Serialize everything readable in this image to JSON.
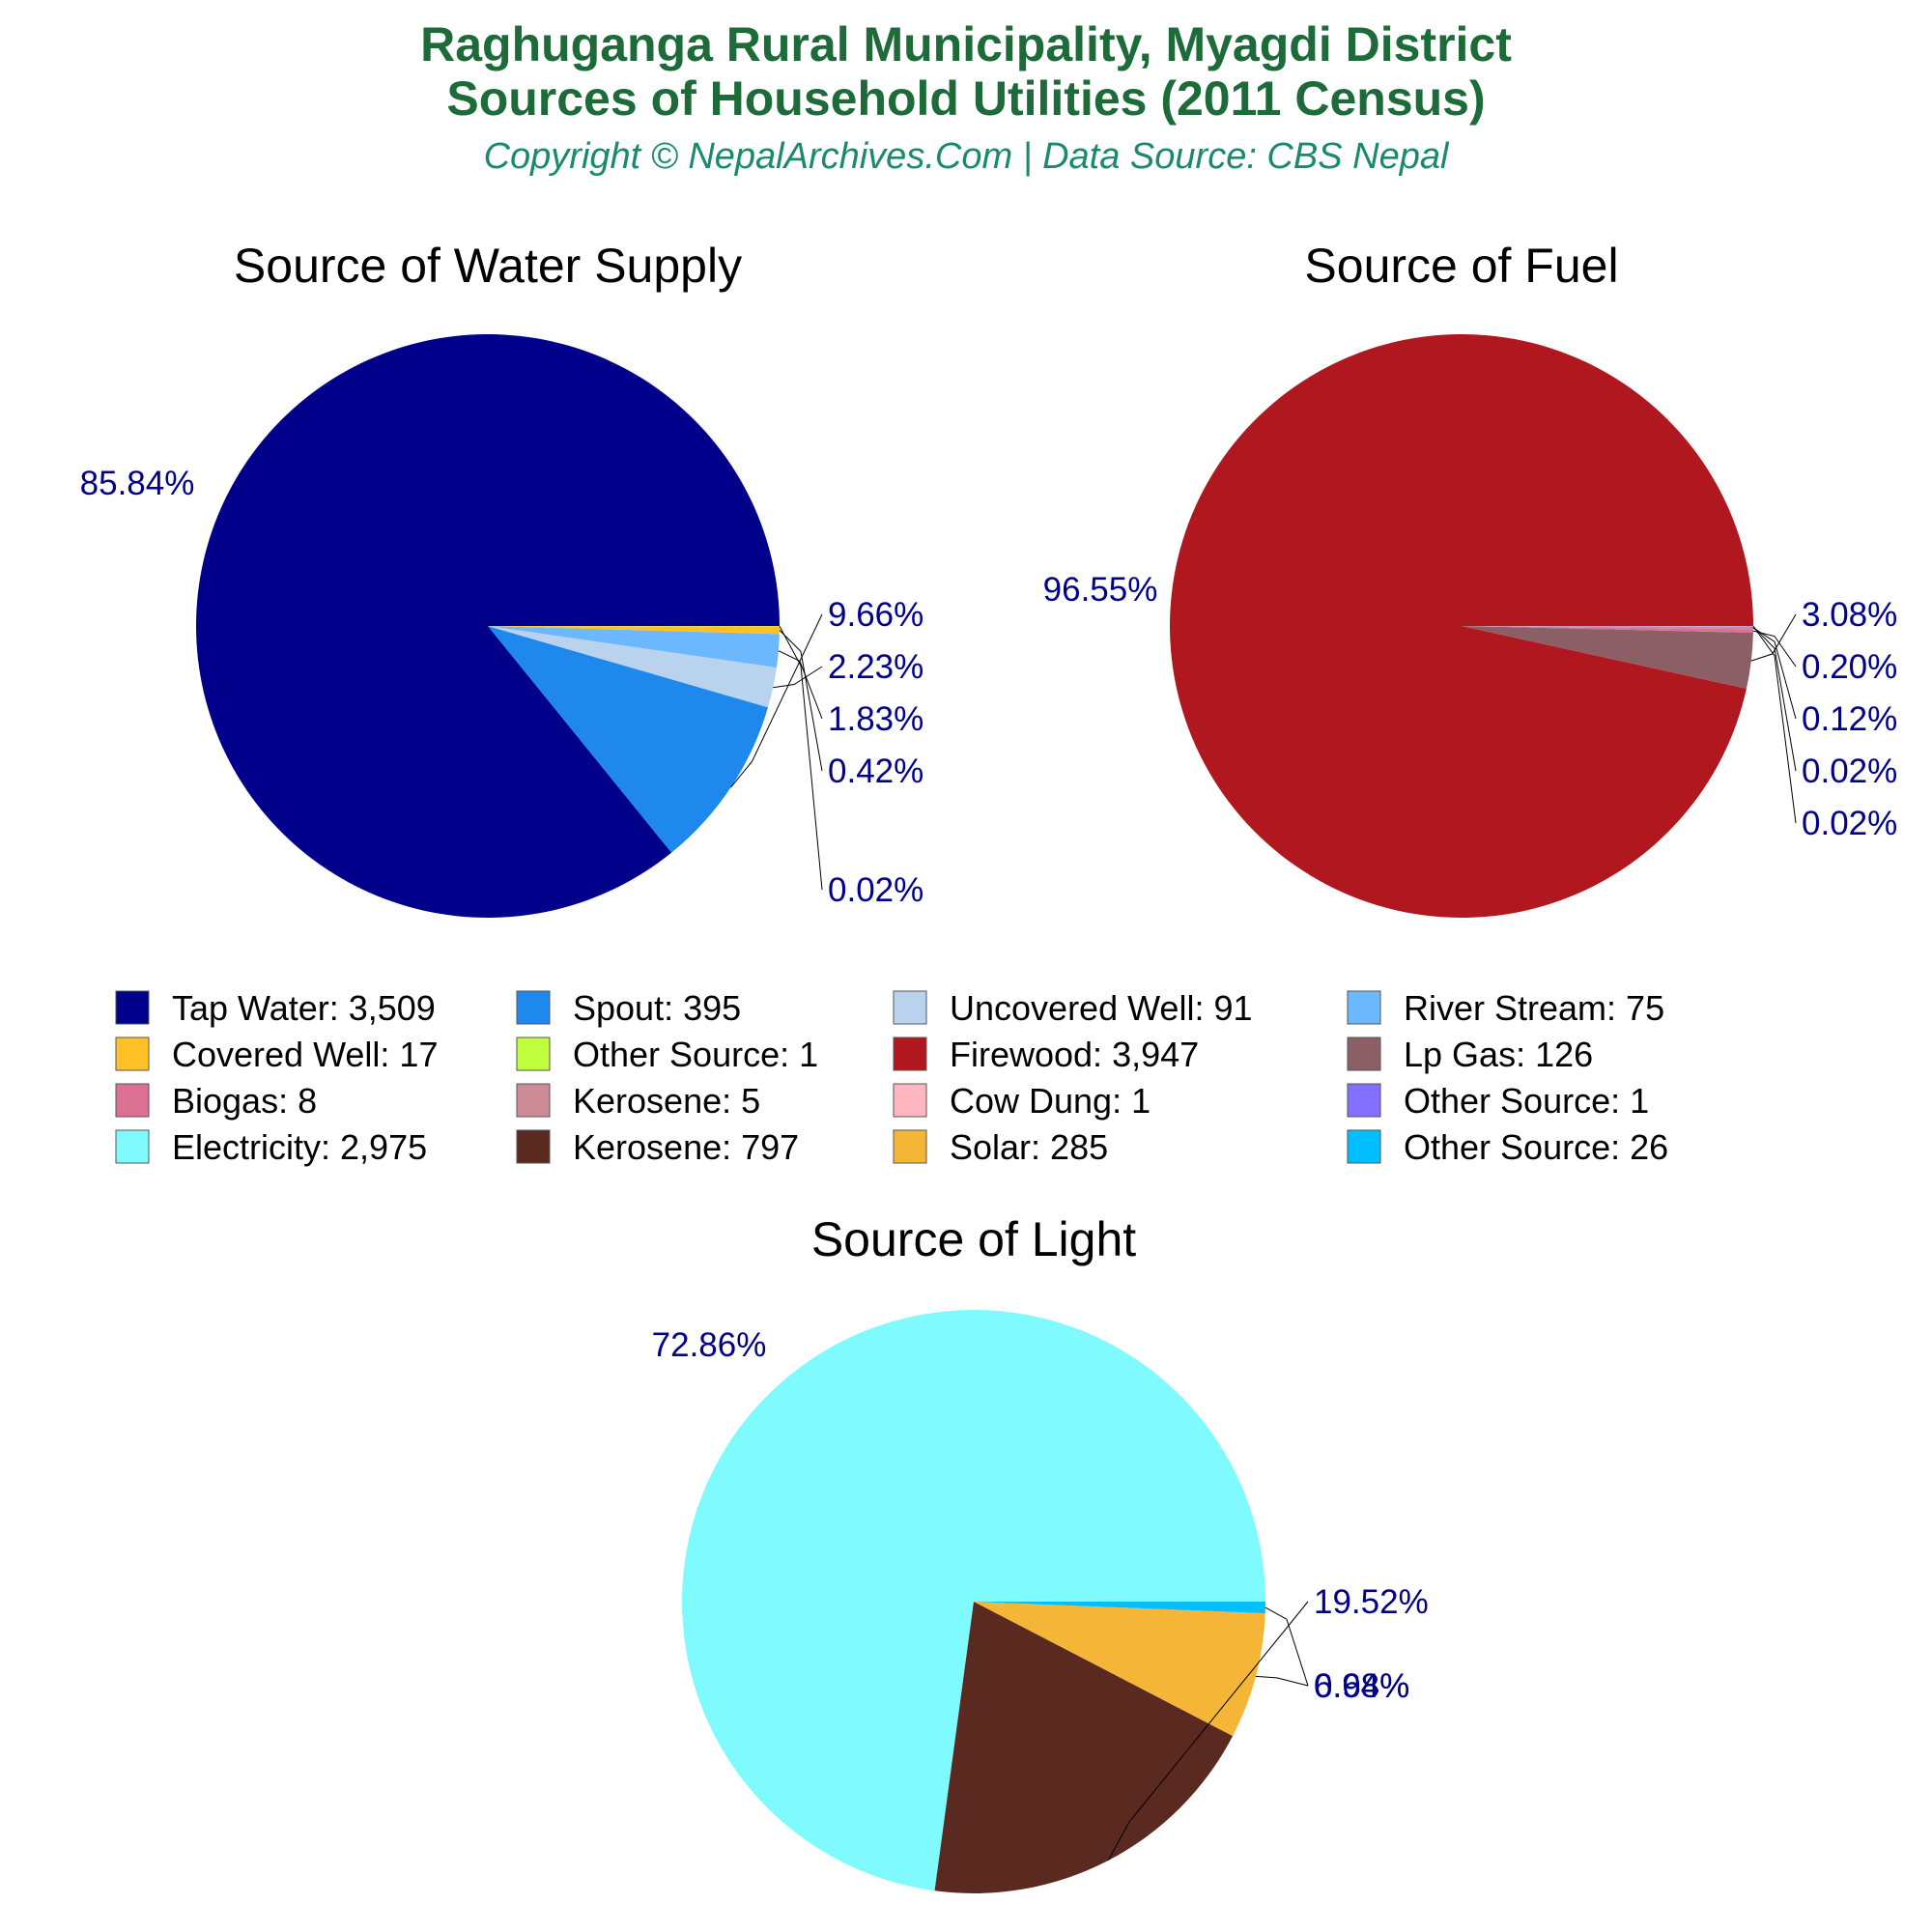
{
  "header": {
    "title_line1": "Raghuganga Rural Municipality, Myagdi District",
    "title_line2": "Sources of Household Utilities (2011 Census)",
    "subtitle": "Copyright © NepalArchives.Com | Data Source: CBS Nepal"
  },
  "chart_data": [
    {
      "type": "pie",
      "title": "Source of Water Supply",
      "slices": [
        {
          "label": "Tap Water",
          "value": 3509,
          "pct": "85.84%",
          "color": "#00008b"
        },
        {
          "label": "Spout",
          "value": 395,
          "pct": "9.66%",
          "color": "#1e88ec"
        },
        {
          "label": "Uncovered Well",
          "value": 91,
          "pct": "2.23%",
          "color": "#b9d3ee"
        },
        {
          "label": "River Stream",
          "value": 75,
          "pct": "1.83%",
          "color": "#6cb8ff"
        },
        {
          "label": "Covered Well",
          "value": 17,
          "pct": "0.42%",
          "color": "#ffc125"
        },
        {
          "label": "Other Source",
          "value": 1,
          "pct": "0.02%",
          "color": "#c0ff3e"
        }
      ]
    },
    {
      "type": "pie",
      "title": "Source of Fuel",
      "slices": [
        {
          "label": "Firewood",
          "value": 3947,
          "pct": "96.55%",
          "color": "#b0171f"
        },
        {
          "label": "Lp Gas",
          "value": 126,
          "pct": "3.08%",
          "color": "#8b5f65"
        },
        {
          "label": "Biogas",
          "value": 8,
          "pct": "0.20%",
          "color": "#db7093"
        },
        {
          "label": "Kerosene",
          "value": 5,
          "pct": "0.12%",
          "color": "#cd8c95"
        },
        {
          "label": "Cow Dung",
          "value": 1,
          "pct": "0.02%",
          "color": "#ffb6c1"
        },
        {
          "label": "Other Source",
          "value": 1,
          "pct": "0.02%",
          "color": "#8470ff"
        }
      ]
    },
    {
      "type": "pie",
      "title": "Source of Light",
      "slices": [
        {
          "label": "Electricity",
          "value": 2975,
          "pct": "72.86%",
          "color": "#7ffaff"
        },
        {
          "label": "Kerosene",
          "value": 797,
          "pct": "19.52%",
          "color": "#5a2a20"
        },
        {
          "label": "Solar",
          "value": 285,
          "pct": "6.98%",
          "color": "#f5b536"
        },
        {
          "label": "Other Source",
          "value": 26,
          "pct": "0.64%",
          "color": "#00bfff"
        }
      ]
    }
  ],
  "legend": [
    {
      "text": "Tap Water: 3,509",
      "color": "#00008b"
    },
    {
      "text": "Spout: 395",
      "color": "#1e88ec"
    },
    {
      "text": "Uncovered Well: 91",
      "color": "#b9d3ee"
    },
    {
      "text": "River Stream: 75",
      "color": "#6cb8ff"
    },
    {
      "text": "Covered Well: 17",
      "color": "#ffc125"
    },
    {
      "text": "Other Source: 1",
      "color": "#c0ff3e"
    },
    {
      "text": "Firewood: 3,947",
      "color": "#b0171f"
    },
    {
      "text": "Lp Gas: 126",
      "color": "#8b5f65"
    },
    {
      "text": "Biogas: 8",
      "color": "#db7093"
    },
    {
      "text": "Kerosene: 5",
      "color": "#cd8c95"
    },
    {
      "text": "Cow Dung: 1",
      "color": "#ffb6c1"
    },
    {
      "text": "Other Source: 1",
      "color": "#8470ff"
    },
    {
      "text": "Electricity: 2,975",
      "color": "#7ffaff"
    },
    {
      "text": "Kerosene: 797",
      "color": "#5a2a20"
    },
    {
      "text": "Solar: 285",
      "color": "#f5b536"
    },
    {
      "text": "Other Source: 26",
      "color": "#00bfff"
    }
  ]
}
